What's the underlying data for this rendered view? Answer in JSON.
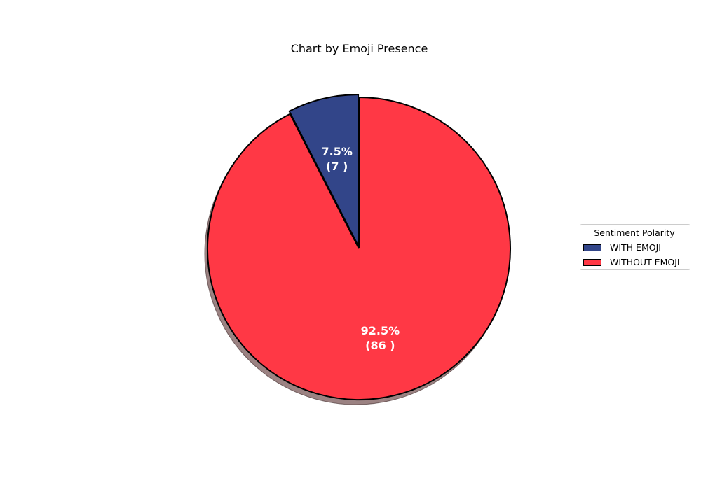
{
  "chart_data": {
    "type": "pie",
    "title": "Chart by Emoji Presence",
    "legend_title": "Sentiment Polarity",
    "legend_position": "right",
    "start_angle_deg": 90,
    "direction": "counterclockwise",
    "shadow": true,
    "slices": [
      {
        "label": "WITH EMOJI",
        "value": 7,
        "percent": "7.5%",
        "count_label": "(7 )",
        "color": "#324589",
        "exploded": true
      },
      {
        "label": "WITHOUT EMOJI",
        "value": 86,
        "percent": "92.5%",
        "count_label": "(86 )",
        "color": "#FF3845",
        "exploded": false
      }
    ]
  }
}
